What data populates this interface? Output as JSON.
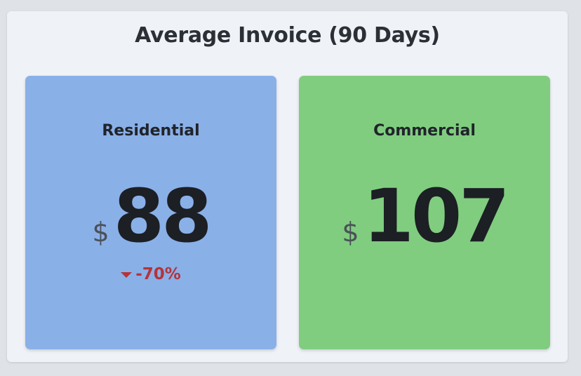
{
  "widget": {
    "title": "Average Invoice (90 Days)"
  },
  "cards": [
    {
      "label": "Residential",
      "currency": "$",
      "value": "88",
      "change": "-70%",
      "change_direction": "down",
      "background": "#8ab0e8"
    },
    {
      "label": "Commercial",
      "currency": "$",
      "value": "107",
      "background": "#80cd80"
    }
  ],
  "colors": {
    "negative_change": "#b5333a"
  }
}
